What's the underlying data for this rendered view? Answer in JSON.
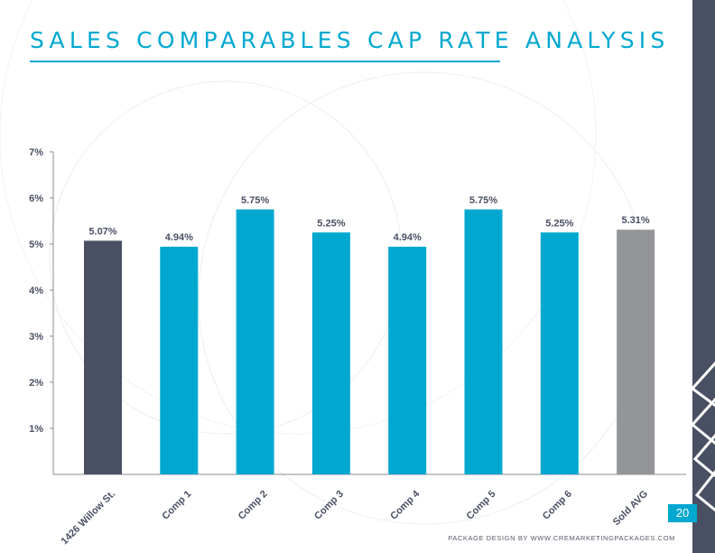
{
  "title": "SALES COMPARABLES CAP RATE ANALYSIS",
  "page_number": "20",
  "footer_credit": "PACKAGE DESIGN BY WWW.CREMARKETINGPACKAGES.COM",
  "colors": {
    "accent": "#00a8d0",
    "subject": "#4a5063",
    "average": "#939598",
    "sidebar": "#4a5063"
  },
  "chart_data": {
    "type": "bar",
    "categories": [
      "1426 Willow St.",
      "Comp 1",
      "Comp 2",
      "Comp 3",
      "Comp 4",
      "Comp 5",
      "Comp 6",
      "Sold AVG"
    ],
    "values": [
      5.07,
      4.94,
      5.75,
      5.25,
      4.94,
      5.75,
      5.25,
      5.31
    ],
    "data_labels": [
      "5.07%",
      "4.94%",
      "5.75%",
      "5.25%",
      "4.94%",
      "5.75%",
      "5.25%",
      "5.31%"
    ],
    "bar_colors": [
      "#4a5063",
      "#00a8d0",
      "#00a8d0",
      "#00a8d0",
      "#00a8d0",
      "#00a8d0",
      "#00a8d0",
      "#939598"
    ],
    "yticks": [
      {
        "value": 1,
        "label": "1%"
      },
      {
        "value": 2,
        "label": "2%"
      },
      {
        "value": 3,
        "label": "3%"
      },
      {
        "value": 4,
        "label": "4%"
      },
      {
        "value": 5,
        "label": "5%"
      },
      {
        "value": 6,
        "label": "6%"
      },
      {
        "value": 7,
        "label": "7%"
      }
    ],
    "ylim": [
      0,
      7
    ],
    "grid": false,
    "legend": "none"
  }
}
